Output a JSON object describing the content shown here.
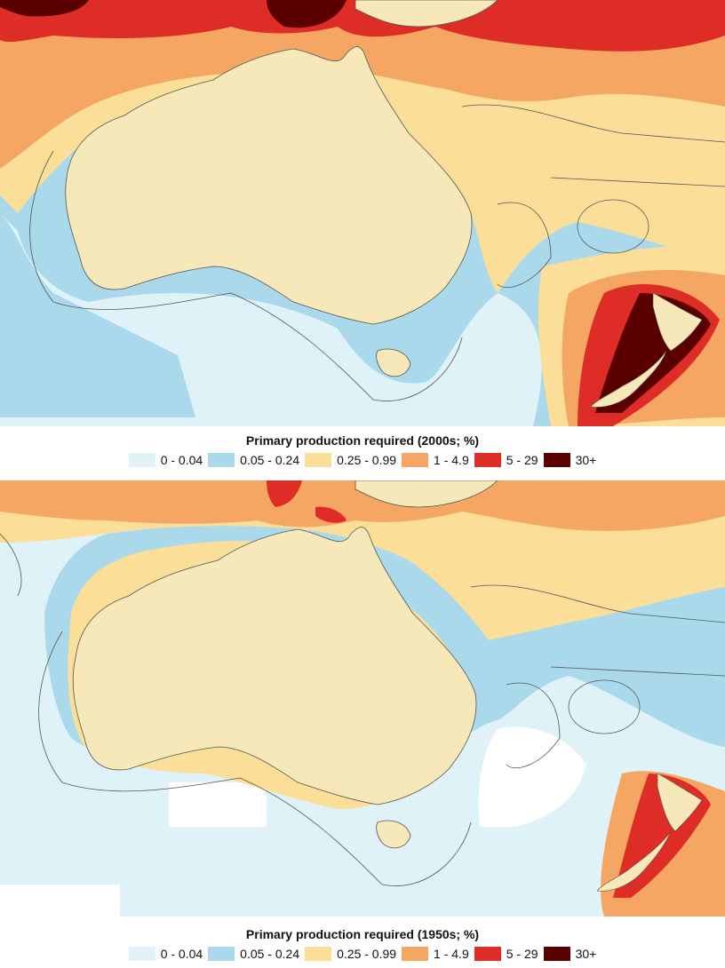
{
  "legend_classes": [
    {
      "label": "0 - 0.04",
      "color": "#dff2f8"
    },
    {
      "label": "0.05 - 0.24",
      "color": "#a9d9ea"
    },
    {
      "label": "0.25 - 0.99",
      "color": "#fbdf98"
    },
    {
      "label": "1 - 4.9",
      "color": "#f5a663"
    },
    {
      "label": "5 - 29",
      "color": "#de2c26"
    },
    {
      "label": "30+",
      "color": "#5b0000"
    }
  ],
  "colors": {
    "land": "#f6e8b8",
    "eez_border": "#555555",
    "no_data": "#ffffff"
  },
  "maps": [
    {
      "title": "Primary production required (2000s; %)"
    },
    {
      "title": "Primary production required (1950s; %)"
    }
  ]
}
